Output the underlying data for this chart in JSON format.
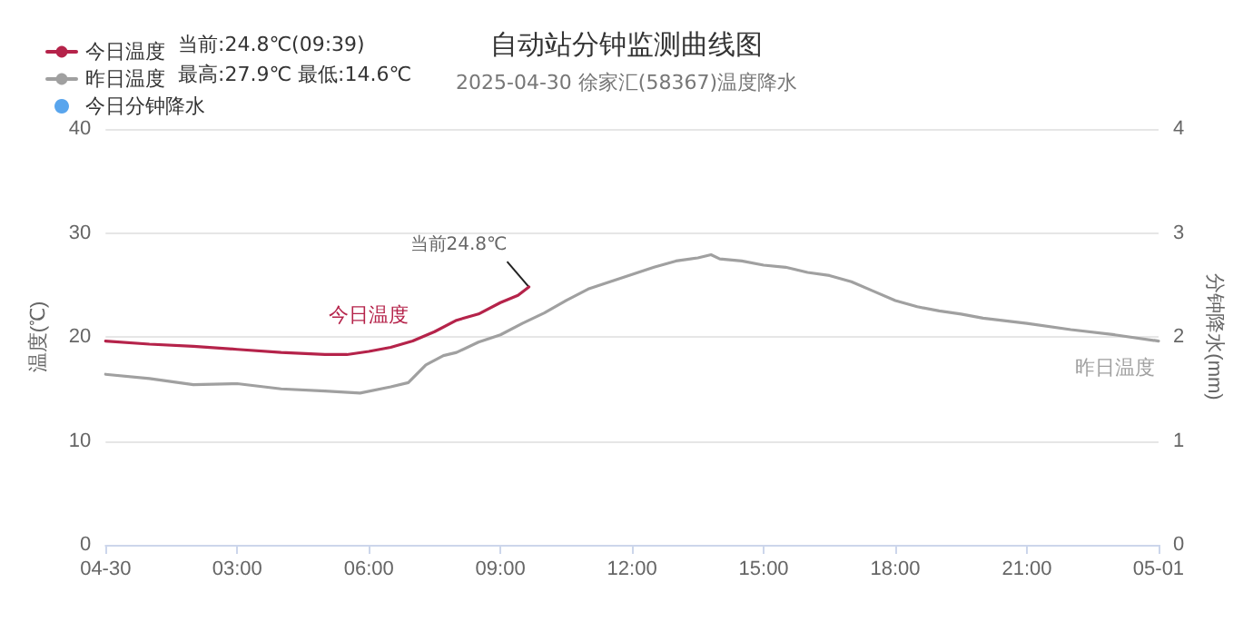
{
  "chart_data": {
    "type": "line",
    "title": "自动站分钟监测曲线图",
    "subtitle": "2025-04-30 徐家汇(58367)温度降水",
    "ylabel": "温度(℃)",
    "y2label": "分钟降水(mm)",
    "xlim": [
      0,
      24
    ],
    "xticks": [
      {
        "value": 0,
        "label": "04-30"
      },
      {
        "value": 3,
        "label": "03:00"
      },
      {
        "value": 6,
        "label": "06:00"
      },
      {
        "value": 9,
        "label": "09:00"
      },
      {
        "value": 12,
        "label": "12:00"
      },
      {
        "value": 15,
        "label": "15:00"
      },
      {
        "value": 18,
        "label": "18:00"
      },
      {
        "value": 21,
        "label": "21:00"
      },
      {
        "value": 24,
        "label": "05-01"
      }
    ],
    "ylim": [
      0,
      40
    ],
    "yticks": [
      0,
      10,
      20,
      30,
      40
    ],
    "y2lim": [
      0,
      4
    ],
    "y2ticks": [
      0,
      1,
      2,
      3,
      4
    ],
    "grid": "y",
    "legend": "top left",
    "marker": "none",
    "line_style": "solid",
    "series": [
      {
        "name": "今日温度",
        "color": "#b5234a",
        "x": [
          0,
          1,
          2,
          3,
          4,
          5,
          5.5,
          6,
          6.5,
          7,
          7.5,
          8,
          8.5,
          9,
          9.4,
          9.65
        ],
        "values": [
          19.6,
          19.3,
          19.1,
          18.8,
          18.5,
          18.3,
          18.3,
          18.6,
          19.0,
          19.6,
          20.5,
          21.6,
          22.2,
          23.3,
          24.0,
          24.8
        ]
      },
      {
        "name": "昨日温度",
        "color": "#a0a0a0",
        "x": [
          0,
          1,
          2,
          3,
          4,
          5,
          5.8,
          6.5,
          6.9,
          7.3,
          7.7,
          8,
          8.5,
          9,
          9.5,
          10,
          10.5,
          11,
          11.5,
          12,
          12.5,
          13,
          13.5,
          13.8,
          14,
          14.5,
          15,
          15.5,
          16,
          16.5,
          17,
          17.5,
          18,
          18.5,
          19,
          19.5,
          20,
          21,
          22,
          23,
          24
        ],
        "values": [
          16.4,
          16.0,
          15.4,
          15.5,
          15.0,
          14.8,
          14.6,
          15.2,
          15.6,
          17.3,
          18.2,
          18.5,
          19.5,
          20.2,
          21.3,
          22.3,
          23.5,
          24.6,
          25.3,
          26.0,
          26.7,
          27.3,
          27.6,
          27.9,
          27.5,
          27.3,
          26.9,
          26.7,
          26.2,
          25.9,
          25.3,
          24.4,
          23.5,
          22.9,
          22.5,
          22.2,
          21.8,
          21.3,
          20.7,
          20.2,
          19.6
        ]
      },
      {
        "name": "今日分钟降水",
        "type": "scatter",
        "color": "#2f8fe8"
      }
    ],
    "annotations": [
      "当前:24.8℃(09:39)",
      "最高:27.9℃ 最低:14.6℃",
      {
        "text": "当前24.8℃",
        "x": 9.65,
        "y": 24.8
      },
      "今日温度",
      "昨日温度"
    ]
  }
}
